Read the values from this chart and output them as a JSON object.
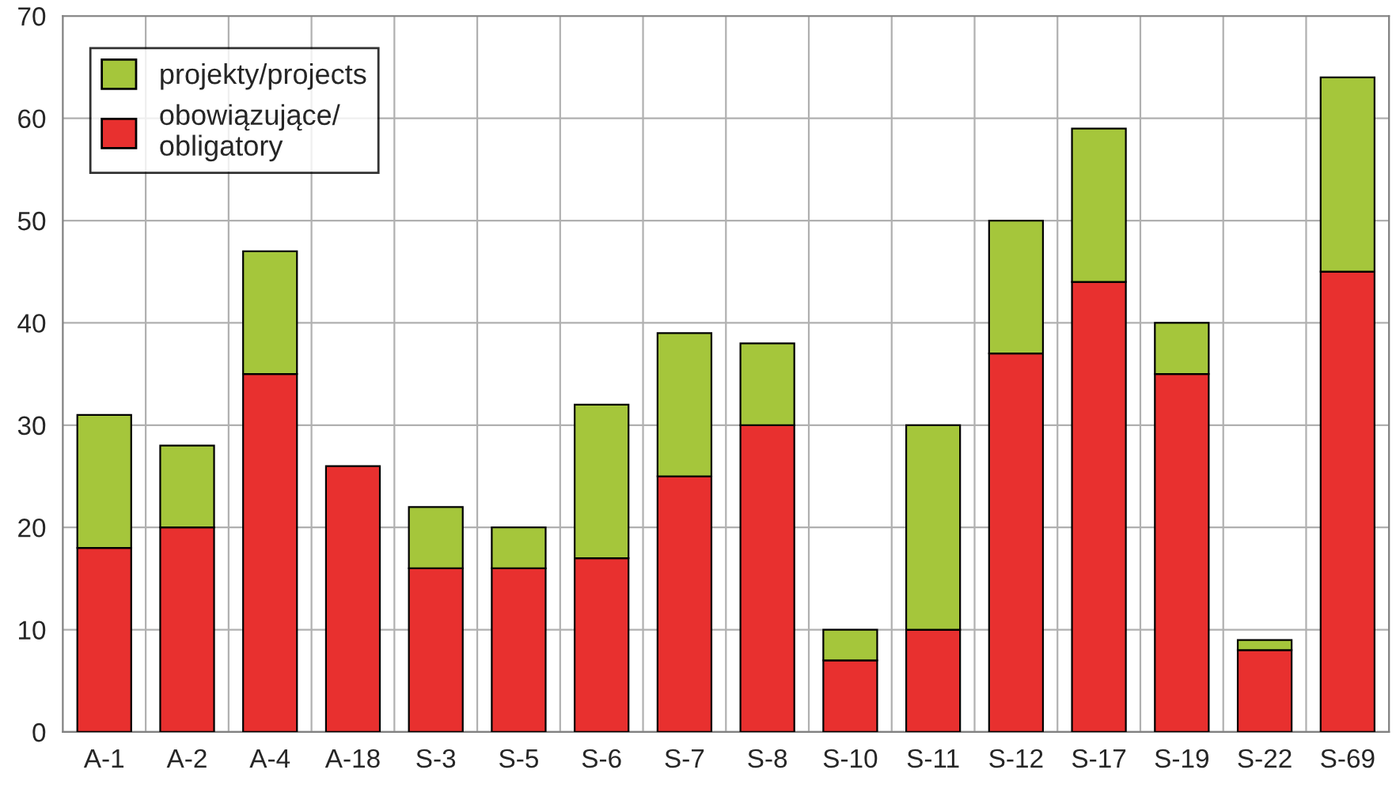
{
  "chart_data": {
    "type": "bar",
    "stacked": true,
    "categories": [
      "A-1",
      "A-2",
      "A-4",
      "A-18",
      "S-3",
      "S-5",
      "S-6",
      "S-7",
      "S-8",
      "S-10",
      "S-11",
      "S-12",
      "S-17",
      "S-19",
      "S-22",
      "S-69"
    ],
    "series": [
      {
        "name": "obowiązujące/\nobligatory",
        "color": "#e8302f",
        "values": [
          18,
          20,
          35,
          26,
          16,
          16,
          17,
          25,
          30,
          7,
          10,
          37,
          44,
          35,
          8,
          45
        ]
      },
      {
        "name": "projekty/projects",
        "color": "#a5c63b",
        "values": [
          13,
          8,
          12,
          null,
          6,
          4,
          15,
          14,
          8,
          3,
          20,
          13,
          15,
          5,
          1,
          19
        ]
      }
    ],
    "ylim": [
      0,
      70
    ],
    "yticks": [
      0,
      10,
      20,
      30,
      40,
      50,
      60,
      70
    ],
    "grid": true,
    "legend": "top left"
  }
}
